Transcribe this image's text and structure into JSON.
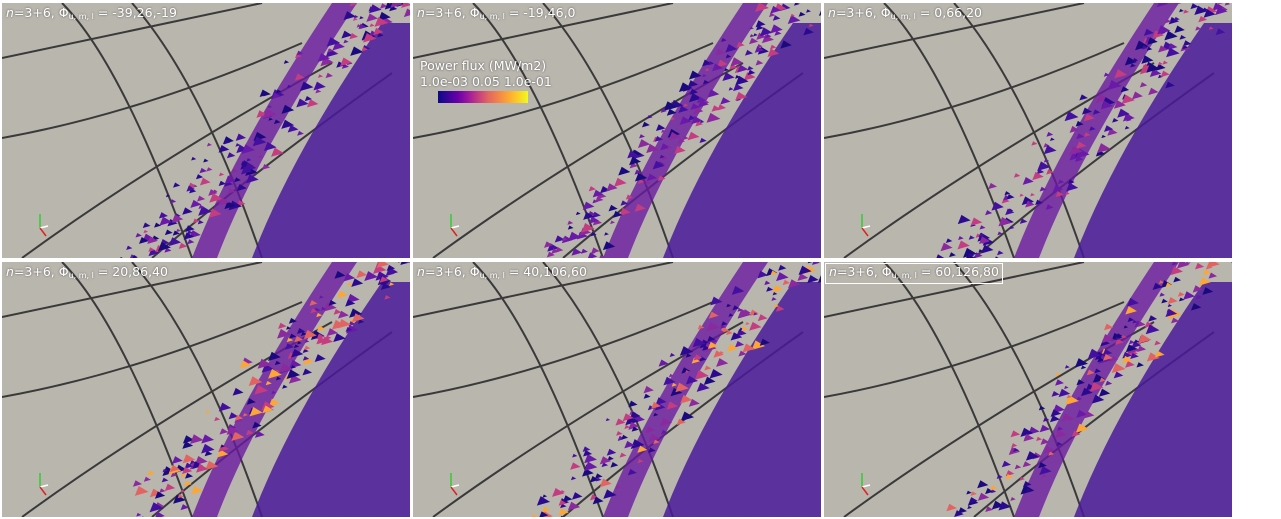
{
  "panels": [
    {
      "n_label": "n",
      "eq": "=3+6, ",
      "phi": "Φ",
      "phi_sub": "u, m, l",
      "phi_values": " = -39,26,-19",
      "boxed": false
    },
    {
      "n_label": "n",
      "eq": "=3+6, ",
      "phi": "Φ",
      "phi_sub": "u, m, l",
      "phi_values": " = -19,46,0",
      "boxed": false
    },
    {
      "n_label": "n",
      "eq": "=3+6, ",
      "phi": "Φ",
      "phi_sub": "u, m, l",
      "phi_values": " = 0,66,20",
      "boxed": false
    },
    {
      "n_label": "n",
      "eq": "=3+6, ",
      "phi": "Φ",
      "phi_sub": "u, m, l",
      "phi_values": " = 20,86,40",
      "boxed": false
    },
    {
      "n_label": "n",
      "eq": "=3+6, ",
      "phi": "Φ",
      "phi_sub": "u, m, l",
      "phi_values": " = 40,106,60",
      "boxed": false
    },
    {
      "n_label": "n",
      "eq": "=3+6, ",
      "phi": "Φ",
      "phi_sub": "u, m, l",
      "phi_values": " = 60,126,80",
      "boxed": true
    }
  ],
  "colorbar": {
    "title": "Power flux (MW/m2)",
    "tick_min": "1.0e-03",
    "tick_mid": "0.05",
    "tick_max": "1.0e-01",
    "colormap": "plasma"
  },
  "colors": {
    "wall": "#b9b6ae",
    "seam": "#3a3a3a",
    "low_flux": "#2a0a8c",
    "high_flux": "#f0d020"
  },
  "icons": [
    "axes-triad-icon"
  ]
}
